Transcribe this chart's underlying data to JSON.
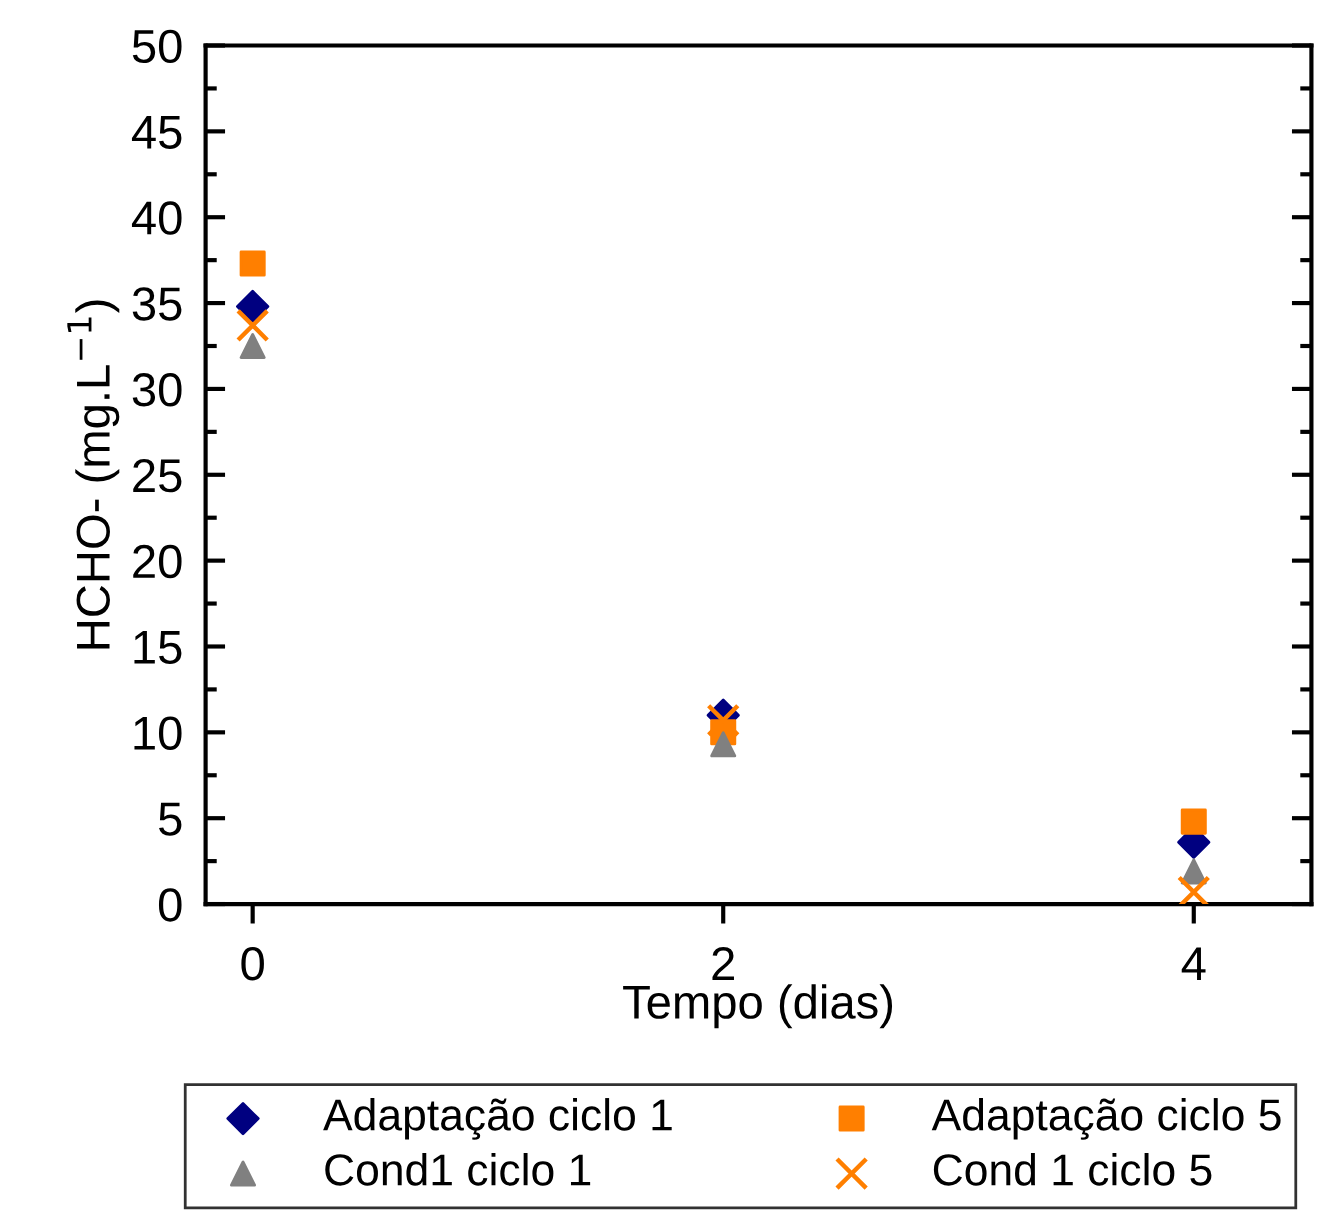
{
  "chart_data": {
    "type": "scatter",
    "xlabel": "Tempo (dias)",
    "ylabel": "HCHO- (mg.L$^{−1}$)",
    "x": [
      0,
      2,
      4
    ],
    "xlim": [
      -0.2,
      4.5
    ],
    "xticks": [
      0,
      2,
      4
    ],
    "ylim": [
      0,
      50
    ],
    "yticks": [
      0,
      {
        "value": 2.5,
        "label": null
      },
      5,
      {
        "value": 7.5,
        "label": null
      },
      10,
      {
        "value": 12.5,
        "label": null
      },
      15,
      {
        "value": 17.5,
        "label": null
      },
      20,
      {
        "value": 22.5,
        "label": null
      },
      25,
      {
        "value": 27.5,
        "label": null
      },
      30,
      {
        "value": 32.5,
        "label": null
      },
      35,
      {
        "value": 37.5,
        "label": null
      },
      40,
      {
        "value": 42.5,
        "label": null
      },
      45,
      {
        "value": 47.5,
        "label": null
      },
      50
    ],
    "grid": false,
    "legend": "bottom",
    "series": [
      {
        "name": "Adaptação ciclo 1",
        "color": "#000080",
        "marker": "diamond",
        "values": [
          34.8,
          11.0,
          3.6
        ]
      },
      {
        "name": "Adaptação ciclo 5",
        "color": "#ff7f00",
        "marker": "square",
        "values": [
          37.3,
          10.0,
          4.8
        ]
      },
      {
        "name": "Cond1 ciclo 1",
        "color": "#808080",
        "marker": "triangle",
        "values": [
          32.5,
          9.3,
          1.9
        ]
      },
      {
        "name": "Cond 1 ciclo 5",
        "color": "#ff7f00",
        "marker": "cross",
        "values": [
          33.7,
          10.7,
          0.7
        ]
      }
    ]
  }
}
